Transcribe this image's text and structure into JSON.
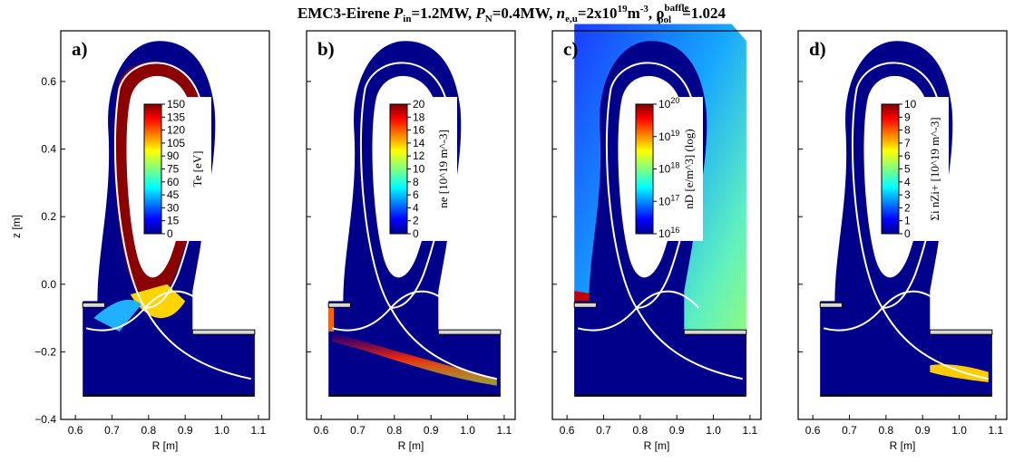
{
  "title": {
    "prefix": "EMC3-Eirene ",
    "pin_sym": "P",
    "pin_sub": "in",
    "pin_val": "=1.2MW, ",
    "pn_sym": "P",
    "pn_sub": "N",
    "pn_val": "=0.4MW, ",
    "ne_sym": "n",
    "ne_sub": "e,u",
    "ne_val": "=2x10",
    "ne_exp": "19",
    "ne_unit": "m",
    "ne_unit_exp": "-3",
    "rho_sep": ", ",
    "rho_sym": "ρ",
    "rho_sub": "pol",
    "rho_sup": "baffle",
    "rho_val": "=1.024"
  },
  "chart_data": [
    {
      "type": "heatmap",
      "panel_label": "a)",
      "quantity": "T_e",
      "colorbar_label": "Te [eV]",
      "colorbar_ticks": [
        "150",
        "135",
        "120",
        "105",
        "90",
        "75",
        "60",
        "45",
        "30",
        "15",
        "0"
      ],
      "colorbar_range": [
        0,
        150
      ],
      "scale": "linear",
      "xlabel": "R [m]",
      "ylabel": "z [m]",
      "xlim": [
        0.56,
        1.13
      ],
      "ylim": [
        -0.4,
        0.75
      ],
      "xticks": [
        "0.6",
        "0.7",
        "0.8",
        "0.9",
        "1.0",
        "1.1"
      ],
      "yticks": [
        "0.6",
        "0.4",
        "0.2",
        "0.0",
        "−0.2",
        "−0.4"
      ]
    },
    {
      "type": "heatmap",
      "panel_label": "b)",
      "quantity": "n_e",
      "colorbar_label": "ne [10^19 m^-3]",
      "colorbar_ticks": [
        "20",
        "18",
        "16",
        "14",
        "12",
        "10",
        "8",
        "6",
        "4",
        "2",
        "0"
      ],
      "colorbar_range": [
        0,
        20
      ],
      "scale": "linear",
      "xlabel": "R [m]",
      "xlim": [
        0.56,
        1.13
      ],
      "ylim": [
        -0.4,
        0.75
      ],
      "xticks": [
        "0.6",
        "0.7",
        "0.8",
        "0.9",
        "1.0",
        "1.1"
      ]
    },
    {
      "type": "heatmap",
      "panel_label": "c)",
      "quantity": "n_D",
      "colorbar_label": "nD [e/m^3] (log)",
      "colorbar_ticks": [
        "20",
        "19",
        "18",
        "17",
        "16"
      ],
      "colorbar_range": [
        1e+16,
        1e+20
      ],
      "scale": "log",
      "xlabel": "R [m]",
      "xlim": [
        0.56,
        1.13
      ],
      "ylim": [
        -0.4,
        0.75
      ],
      "xticks": [
        "0.6",
        "0.7",
        "0.8",
        "0.9",
        "1.0",
        "1.1"
      ]
    },
    {
      "type": "heatmap",
      "panel_label": "d)",
      "quantity": "Σ_i n_Z^i+",
      "colorbar_label": "Σi nZi+ [10^19 m^-3]",
      "colorbar_ticks": [
        "10",
        "9",
        "8",
        "7",
        "6",
        "5",
        "4",
        "3",
        "2",
        "1",
        "0"
      ],
      "colorbar_range": [
        0,
        10
      ],
      "scale": "linear",
      "xlabel": "R [m]",
      "xlim": [
        0.56,
        1.13
      ],
      "ylim": [
        -0.4,
        0.75
      ],
      "xticks": [
        "0.6",
        "0.7",
        "0.8",
        "0.9",
        "1.0",
        "1.1"
      ]
    }
  ],
  "colors": {
    "background_blue": "#00008b",
    "hot_red": "#8b0000",
    "separatrix": "#ffffff",
    "structure_fill": "#d0d0d0"
  }
}
